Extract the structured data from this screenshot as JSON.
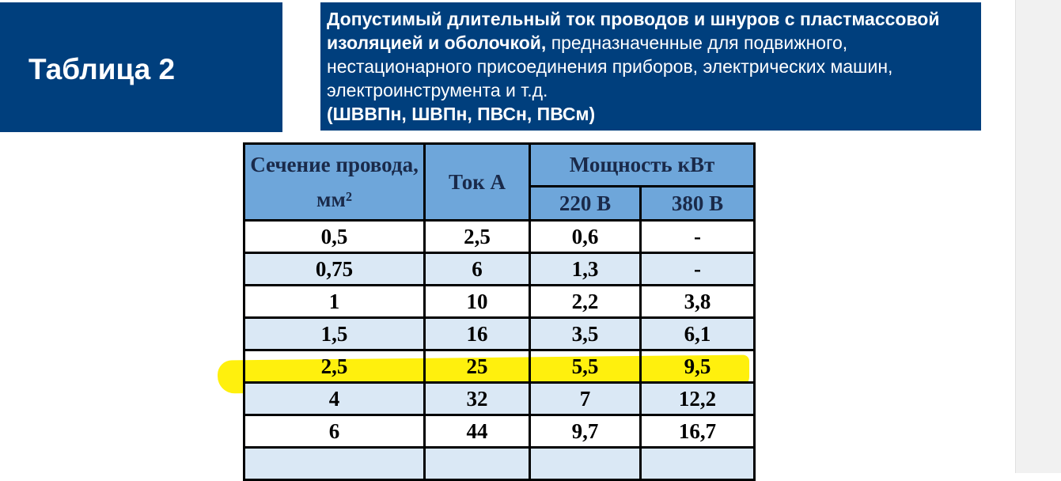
{
  "header": {
    "label": "Таблица 2",
    "description": {
      "bold": "Допустимый длительный ток проводов и шнуров с пластмассовой изоляцией и оболочкой,",
      "normal": "предназначенные для подвижного, нестационарного присоединения приборов, электрических машин, электроинструмента и т.д.",
      "models": "(ШВВПн, ШВПн, ПВСн, ПВСм)"
    }
  },
  "table": {
    "columns": {
      "section": "Сечение провода, мм²",
      "current": "Ток А",
      "power": "Мощность кВт",
      "v220": "220 В",
      "v380": "380 В"
    },
    "rows": [
      [
        "0,5",
        "2,5",
        "0,6",
        "-"
      ],
      [
        "0,75",
        "6",
        "1,3",
        "-"
      ],
      [
        "1",
        "10",
        "2,2",
        "3,8"
      ],
      [
        "1,5",
        "16",
        "3,5",
        "6,1"
      ],
      [
        "2,5",
        "25",
        "5,5",
        "9,5"
      ],
      [
        "4",
        "32",
        "7",
        "12,2"
      ],
      [
        "6",
        "44",
        "9,7",
        "16,7"
      ]
    ]
  }
}
